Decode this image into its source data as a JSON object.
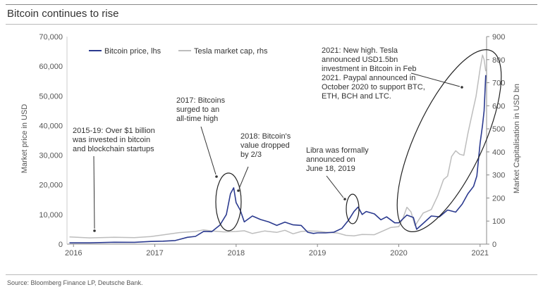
{
  "title": "Bitcoin continues to rise",
  "source": "Source: Bloomberg Finance LP, Deutsche Bank.",
  "chart_data": {
    "type": "line",
    "ylabel_left": "Market price in USD",
    "ylabel_right": "Market Capitalisation in USD bn",
    "ylim_left": [
      0,
      70000
    ],
    "ylim_right": [
      0,
      900
    ],
    "xlim": [
      2015.92,
      2021.08
    ],
    "left_ticks": [
      "0",
      "10,000",
      "20,000",
      "30,000",
      "40,000",
      "50,000",
      "60,000",
      "70,000"
    ],
    "right_ticks": [
      "0",
      "100",
      "200",
      "300",
      "400",
      "500",
      "600",
      "700",
      "800",
      "900"
    ],
    "x_ticks": [
      "2016",
      "2017",
      "2018",
      "2019",
      "2020",
      "2021"
    ],
    "legend_position": "top-left",
    "series": [
      {
        "name": "Bitcoin price, lhs",
        "axis": "left",
        "color": "#2b3a8f",
        "points": [
          [
            2015.95,
            430
          ],
          [
            2016.2,
            420
          ],
          [
            2016.5,
            650
          ],
          [
            2016.75,
            620
          ],
          [
            2016.95,
            900
          ],
          [
            2017.1,
            1000
          ],
          [
            2017.25,
            1200
          ],
          [
            2017.4,
            2300
          ],
          [
            2017.5,
            2600
          ],
          [
            2017.6,
            4300
          ],
          [
            2017.7,
            4200
          ],
          [
            2017.8,
            6400
          ],
          [
            2017.88,
            10000
          ],
          [
            2017.93,
            17000
          ],
          [
            2017.97,
            19000
          ],
          [
            2018.0,
            14000
          ],
          [
            2018.05,
            11500
          ],
          [
            2018.1,
            7500
          ],
          [
            2018.2,
            9500
          ],
          [
            2018.3,
            8300
          ],
          [
            2018.4,
            7500
          ],
          [
            2018.5,
            6300
          ],
          [
            2018.6,
            7400
          ],
          [
            2018.7,
            6500
          ],
          [
            2018.8,
            6300
          ],
          [
            2018.88,
            4000
          ],
          [
            2018.95,
            3600
          ],
          [
            2019.0,
            3800
          ],
          [
            2019.1,
            3800
          ],
          [
            2019.2,
            4000
          ],
          [
            2019.3,
            5300
          ],
          [
            2019.38,
            8000
          ],
          [
            2019.45,
            11000
          ],
          [
            2019.5,
            12500
          ],
          [
            2019.55,
            10000
          ],
          [
            2019.6,
            11000
          ],
          [
            2019.7,
            10200
          ],
          [
            2019.78,
            8200
          ],
          [
            2019.85,
            9200
          ],
          [
            2019.95,
            7200
          ],
          [
            2020.0,
            7200
          ],
          [
            2020.1,
            9800
          ],
          [
            2020.18,
            9000
          ],
          [
            2020.22,
            5000
          ],
          [
            2020.3,
            7000
          ],
          [
            2020.4,
            9500
          ],
          [
            2020.5,
            9200
          ],
          [
            2020.6,
            11500
          ],
          [
            2020.7,
            10800
          ],
          [
            2020.78,
            13500
          ],
          [
            2020.85,
            17000
          ],
          [
            2020.92,
            19500
          ],
          [
            2020.96,
            23000
          ],
          [
            2021.0,
            34000
          ],
          [
            2021.03,
            40000
          ],
          [
            2021.05,
            45000
          ],
          [
            2021.07,
            57000
          ]
        ]
      },
      {
        "name": "Tesla market cap, rhs",
        "axis": "right",
        "color": "#bdbdbd",
        "points": [
          [
            2015.95,
            31
          ],
          [
            2016.2,
            27
          ],
          [
            2016.5,
            30
          ],
          [
            2016.75,
            28
          ],
          [
            2016.95,
            33
          ],
          [
            2017.1,
            40
          ],
          [
            2017.3,
            50
          ],
          [
            2017.5,
            55
          ],
          [
            2017.6,
            62
          ],
          [
            2017.7,
            57
          ],
          [
            2017.85,
            53
          ],
          [
            2018.0,
            55
          ],
          [
            2018.1,
            58
          ],
          [
            2018.2,
            46
          ],
          [
            2018.35,
            57
          ],
          [
            2018.5,
            51
          ],
          [
            2018.6,
            60
          ],
          [
            2018.7,
            45
          ],
          [
            2018.8,
            55
          ],
          [
            2018.9,
            57
          ],
          [
            2019.0,
            56
          ],
          [
            2019.1,
            52
          ],
          [
            2019.25,
            48
          ],
          [
            2019.35,
            38
          ],
          [
            2019.45,
            36
          ],
          [
            2019.55,
            42
          ],
          [
            2019.7,
            41
          ],
          [
            2019.8,
            56
          ],
          [
            2019.9,
            72
          ],
          [
            2020.0,
            76
          ],
          [
            2020.05,
            110
          ],
          [
            2020.1,
            160
          ],
          [
            2020.15,
            140
          ],
          [
            2020.2,
            80
          ],
          [
            2020.3,
            135
          ],
          [
            2020.4,
            150
          ],
          [
            2020.48,
            210
          ],
          [
            2020.55,
            280
          ],
          [
            2020.6,
            295
          ],
          [
            2020.65,
            380
          ],
          [
            2020.7,
            405
          ],
          [
            2020.75,
            390
          ],
          [
            2020.8,
            385
          ],
          [
            2020.85,
            480
          ],
          [
            2020.9,
            560
          ],
          [
            2020.95,
            640
          ],
          [
            2021.0,
            760
          ],
          [
            2021.03,
            820
          ],
          [
            2021.05,
            800
          ],
          [
            2021.07,
            750
          ]
        ]
      }
    ],
    "annotations": [
      {
        "lines": [
          "2015-19: Over $1 billion",
          "was invested in bitcoin",
          "and blockchain startups"
        ]
      },
      {
        "lines": [
          "2017: Bitcoins",
          "surged to an",
          "all-time high"
        ]
      },
      {
        "lines": [
          "2018: Bitcoin's",
          "value dropped",
          "by 2/3"
        ]
      },
      {
        "lines": [
          "Libra was formally",
          "announced on",
          "June 18, 2019"
        ]
      },
      {
        "lines": [
          "2021: New high. Tesla",
          "announced USD1.5bn",
          "investment in Bitcoin in Feb",
          "2021. Paypal announced in",
          "October 2020 to support BTC,",
          "ETH, BCH and LTC."
        ]
      }
    ]
  }
}
